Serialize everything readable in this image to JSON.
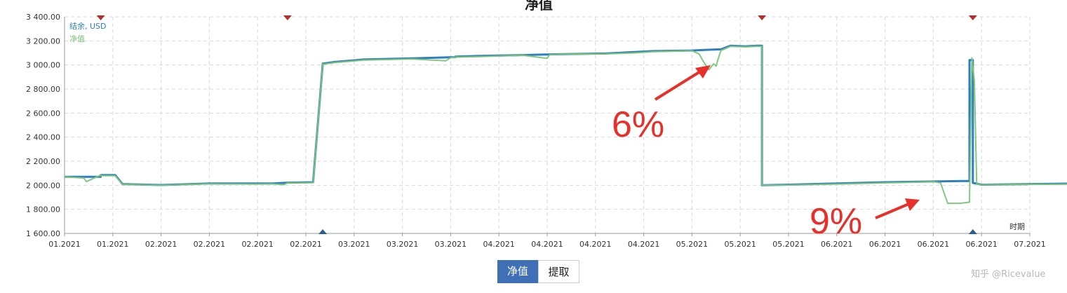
{
  "chart_data": {
    "type": "line",
    "title": "净值",
    "ylim": [
      1600,
      3400
    ],
    "y_ticks": [
      "1 600.00",
      "1 800.00",
      "2 000.00",
      "2 200.00",
      "2 400.00",
      "2 600.00",
      "2 800.00",
      "3 000.00",
      "3 200.00",
      "3 400.00"
    ],
    "y_tick_values": [
      1600,
      1800,
      2000,
      2200,
      2400,
      2600,
      2800,
      3000,
      3200,
      3400
    ],
    "x_ticks": [
      "01.2021",
      "01.2021",
      "02.2021",
      "02.2021",
      "02.2021",
      "02.2021",
      "03.2021",
      "03.2021",
      "03.2021",
      "04.2021",
      "04.2021",
      "04.2021",
      "04.2021",
      "05.2021",
      "05.2021",
      "05.2021",
      "06.2021",
      "06.2021",
      "06.2021",
      "06.2021",
      "07.2021"
    ],
    "x_axis_label": "时期",
    "grid": true,
    "legend_position": "top-left",
    "series": [
      {
        "name": "结余, USD",
        "color": "#2d7fc1",
        "x": [
          0,
          0.75,
          0.75,
          1.05,
          1.2,
          2,
          3,
          4.3,
          4.55,
          4.62,
          5.15,
          5.35,
          5.6,
          6.2,
          7.2,
          8.1,
          8.1,
          8.6,
          9.5,
          10.3,
          11.2,
          12.2,
          13.0,
          13.25,
          13.6,
          13.8,
          14.1,
          14.35,
          14.45,
          14.45,
          15,
          16,
          17,
          18.6,
          18.75,
          18.75,
          18.82,
          18.82,
          19,
          20,
          21
        ],
        "y": [
          2070,
          2070,
          2085,
          2085,
          2010,
          2002,
          2015,
          2015,
          2020,
          2022,
          2025,
          3010,
          3025,
          3045,
          3055,
          3065,
          3070,
          3075,
          3082,
          3090,
          3095,
          3115,
          3120,
          3125,
          3130,
          3160,
          3155,
          3160,
          3160,
          2000,
          2005,
          2015,
          2025,
          2035,
          2035,
          3040,
          3040,
          2020,
          2005,
          2010,
          2015
        ]
      },
      {
        "name": "净值",
        "color": "#7cc47a",
        "x": [
          0,
          0.4,
          0.45,
          0.75,
          0.75,
          1.05,
          1.2,
          2,
          3,
          4.0,
          4.3,
          4.55,
          4.62,
          5.15,
          5.35,
          5.6,
          6.2,
          7.2,
          7.9,
          8.0,
          8.1,
          8.6,
          9.5,
          10.0,
          10.05,
          10.3,
          11.2,
          11.8,
          12.2,
          13.0,
          13.15,
          13.25,
          13.35,
          13.45,
          13.5,
          13.55,
          13.6,
          13.8,
          14.1,
          14.35,
          14.45,
          14.45,
          15,
          16,
          17,
          18.0,
          18.15,
          18.3,
          18.55,
          18.75,
          18.8,
          18.85,
          18.9,
          19,
          20,
          21
        ],
        "y": [
          2070,
          2060,
          2030,
          2085,
          2080,
          2080,
          2008,
          2000,
          2012,
          2010,
          2012,
          2005,
          2020,
          2022,
          3005,
          3020,
          3040,
          3050,
          3035,
          3060,
          3065,
          3070,
          3080,
          3055,
          3085,
          3090,
          3092,
          3100,
          3110,
          3118,
          3090,
          3020,
          2960,
          3010,
          2990,
          3060,
          3120,
          3155,
          3150,
          3155,
          3155,
          2000,
          2002,
          2010,
          2020,
          2030,
          2020,
          1850,
          1850,
          1860,
          3060,
          2870,
          2010,
          2005,
          2008,
          2010
        ]
      }
    ],
    "annotations": [
      {
        "text": "6%",
        "color": "#e8302a"
      },
      {
        "text": "9%",
        "color": "#e8302a"
      }
    ],
    "marker_colors": {
      "top": "#b03030",
      "bottom": "#2c5d8a"
    }
  },
  "tabs": {
    "equity_label": "净值",
    "withdraw_label": "提取"
  },
  "watermark": "知乎 @Ricevalue"
}
